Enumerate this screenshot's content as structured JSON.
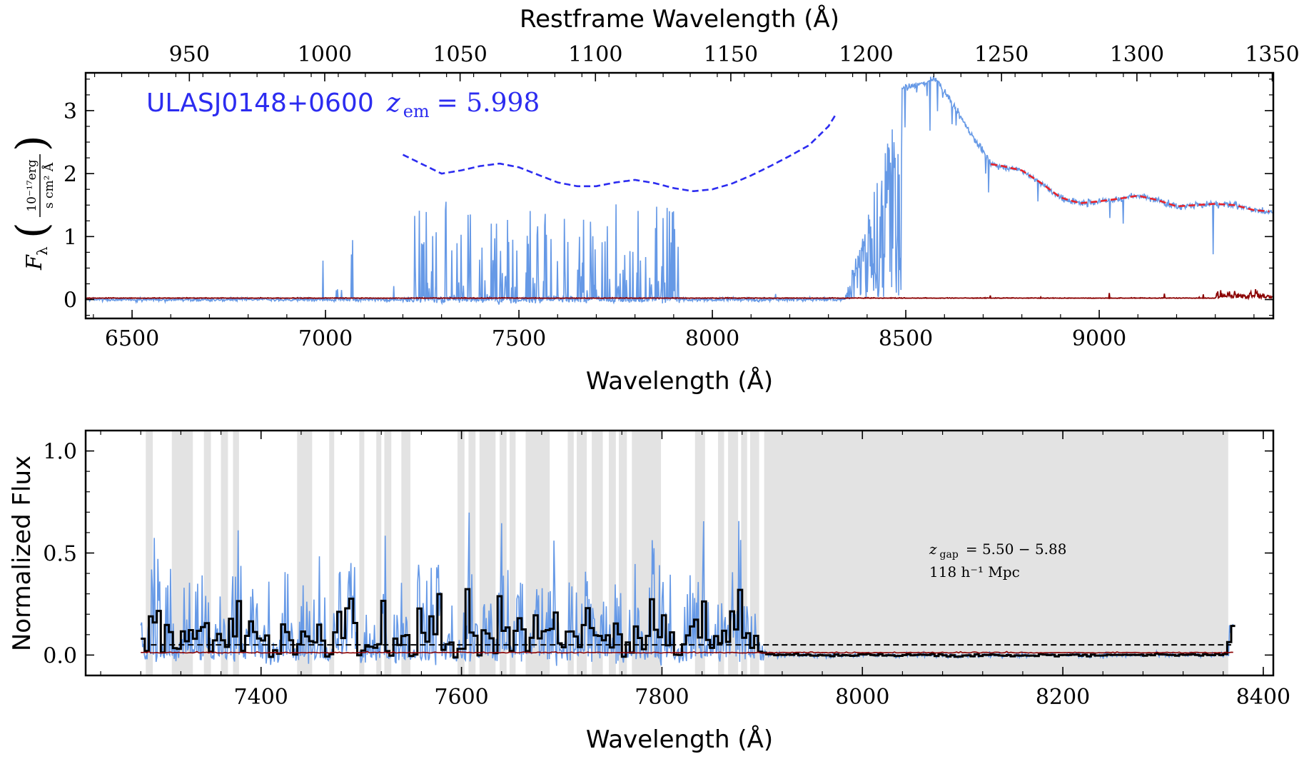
{
  "chart_data": [
    {
      "type": "line",
      "name": "spectrum-panel",
      "title": "",
      "quasar_label": "ULASJ0148+0600",
      "redshift_label": "z",
      "redshift_subscript": "em",
      "redshift_value": "= 5.998",
      "xlabel": "Wavelength (Å)",
      "top_xlabel": "Restframe Wavelength (Å)",
      "ylabel_symbol": "F",
      "ylabel_subscript": "λ",
      "ylabel_units_numerator": "10⁻¹⁷erg",
      "ylabel_units_denominator": "s cm² Å",
      "xlim": [
        6380,
        9450
      ],
      "ylim": [
        -0.3,
        3.6
      ],
      "xticks": [
        "6500",
        "7000",
        "7500",
        "8000",
        "8500",
        "9000"
      ],
      "xtick_values": [
        6500,
        7000,
        7500,
        8000,
        8500,
        9000
      ],
      "yticks": [
        "0",
        "1",
        "2",
        "3"
      ],
      "ytick_values": [
        0,
        1,
        2,
        3
      ],
      "top_xticks": [
        "950",
        "1000",
        "1050",
        "1100",
        "1150",
        "1200",
        "1250",
        "1300",
        "1350"
      ],
      "top_xtick_values": [
        950,
        1000,
        1050,
        1100,
        1150,
        1200,
        1250,
        1300,
        1350
      ],
      "redshift": 5.998,
      "colors": {
        "flux": "#6699e6",
        "error": "#8b0000",
        "template": "#2c2cf0",
        "continuum": "#e8242b"
      },
      "series": [
        {
          "key": "flux",
          "style": "solid",
          "x_range": [
            6380,
            9450
          ]
        },
        {
          "key": "error",
          "style": "solid",
          "x_range": [
            6380,
            9450
          ]
        },
        {
          "key": "template",
          "style": "dashed",
          "x": [
            7200,
            7250,
            7300,
            7350,
            7400,
            7450,
            7500,
            7550,
            7600,
            7650,
            7700,
            7750,
            7800,
            7850,
            7900,
            7950,
            8000,
            8050,
            8100,
            8150,
            8200,
            8250,
            8300,
            8320
          ],
          "y": [
            2.3,
            2.15,
            2.0,
            2.05,
            2.12,
            2.16,
            2.1,
            1.98,
            1.86,
            1.8,
            1.8,
            1.86,
            1.9,
            1.85,
            1.77,
            1.72,
            1.75,
            1.84,
            1.97,
            2.12,
            2.28,
            2.45,
            2.75,
            2.95
          ]
        },
        {
          "key": "continuum",
          "style": "dashed",
          "x": [
            8720,
            8750,
            8800,
            8850,
            8900,
            8950,
            9000,
            9050,
            9100,
            9150,
            9200,
            9250,
            9300,
            9350,
            9400,
            9440
          ],
          "y": [
            2.15,
            2.12,
            2.05,
            1.85,
            1.62,
            1.53,
            1.56,
            1.6,
            1.65,
            1.58,
            1.48,
            1.5,
            1.52,
            1.5,
            1.42,
            1.4
          ]
        }
      ]
    },
    {
      "type": "line",
      "name": "normalized-panel",
      "title": "",
      "xlabel": "Wavelength (Å)",
      "ylabel": "Normalized Flux",
      "xlim": [
        7225,
        8410
      ],
      "ylim": [
        -0.1,
        1.1
      ],
      "xticks": [
        "7400",
        "7600",
        "7800",
        "8000",
        "8200",
        "8400"
      ],
      "xtick_values": [
        7400,
        7600,
        7800,
        8000,
        8200,
        8400
      ],
      "yticks": [
        "0.0",
        "0.5",
        "1.0"
      ],
      "ytick_values": [
        0.0,
        0.5,
        1.0
      ],
      "threshold": 0.05,
      "gap_label_z": "z",
      "gap_label_sub": "gap",
      "gap_label_value": "= 5.50 − 5.88",
      "gap_label_dist": "118 h⁻¹ Mpc",
      "shaded_regions": [
        [
          7285,
          7292
        ],
        [
          7311,
          7332
        ],
        [
          7343,
          7350
        ],
        [
          7360,
          7367
        ],
        [
          7372,
          7378
        ],
        [
          7436,
          7451
        ],
        [
          7468,
          7473
        ],
        [
          7498,
          7503
        ],
        [
          7515,
          7520
        ],
        [
          7523,
          7530
        ],
        [
          7540,
          7549
        ],
        [
          7596,
          7603
        ],
        [
          7607,
          7614
        ],
        [
          7618,
          7634
        ],
        [
          7638,
          7645
        ],
        [
          7648,
          7654
        ],
        [
          7664,
          7688
        ],
        [
          7706,
          7712
        ],
        [
          7715,
          7725
        ],
        [
          7730,
          7741
        ],
        [
          7747,
          7754
        ],
        [
          7757,
          7765
        ],
        [
          7770,
          7799
        ],
        [
          7833,
          7843
        ],
        [
          7856,
          7862
        ],
        [
          7866,
          7876
        ],
        [
          7879,
          7885
        ],
        [
          7888,
          7897
        ],
        [
          7902,
          8365
        ]
      ],
      "colors": {
        "flux": "#6699e6",
        "binned": "#000000",
        "error": "#8b0000",
        "shade": "#e3e3e3",
        "threshold": "#000000"
      },
      "series": [
        {
          "key": "flux",
          "style": "solid",
          "x_range": [
            7280,
            8370
          ]
        },
        {
          "key": "binned",
          "style": "steps",
          "x_range": [
            7280,
            8370
          ]
        },
        {
          "key": "error",
          "style": "solid",
          "x_range": [
            7280,
            8370
          ]
        }
      ]
    }
  ]
}
